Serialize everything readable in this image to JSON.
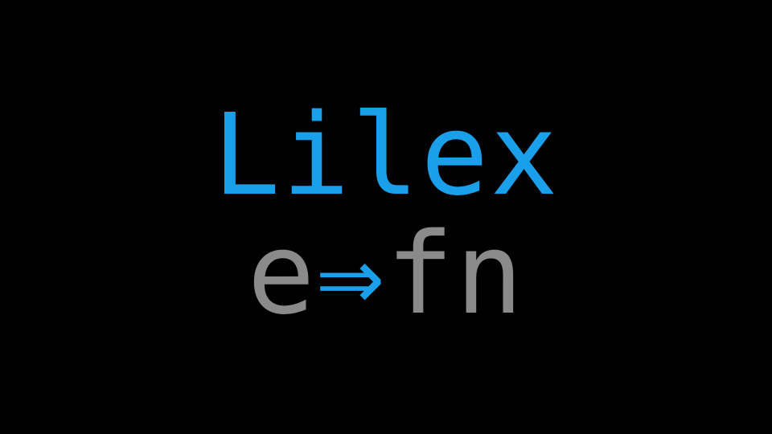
{
  "logo": {
    "wordmark": "Lilex",
    "ligature_demo": {
      "left": "e",
      "arrow": "⇒",
      "right": "fn"
    }
  },
  "colors": {
    "background": "#000000",
    "accent_blue": "#1a9fea",
    "gray": "#8a8a8a"
  }
}
